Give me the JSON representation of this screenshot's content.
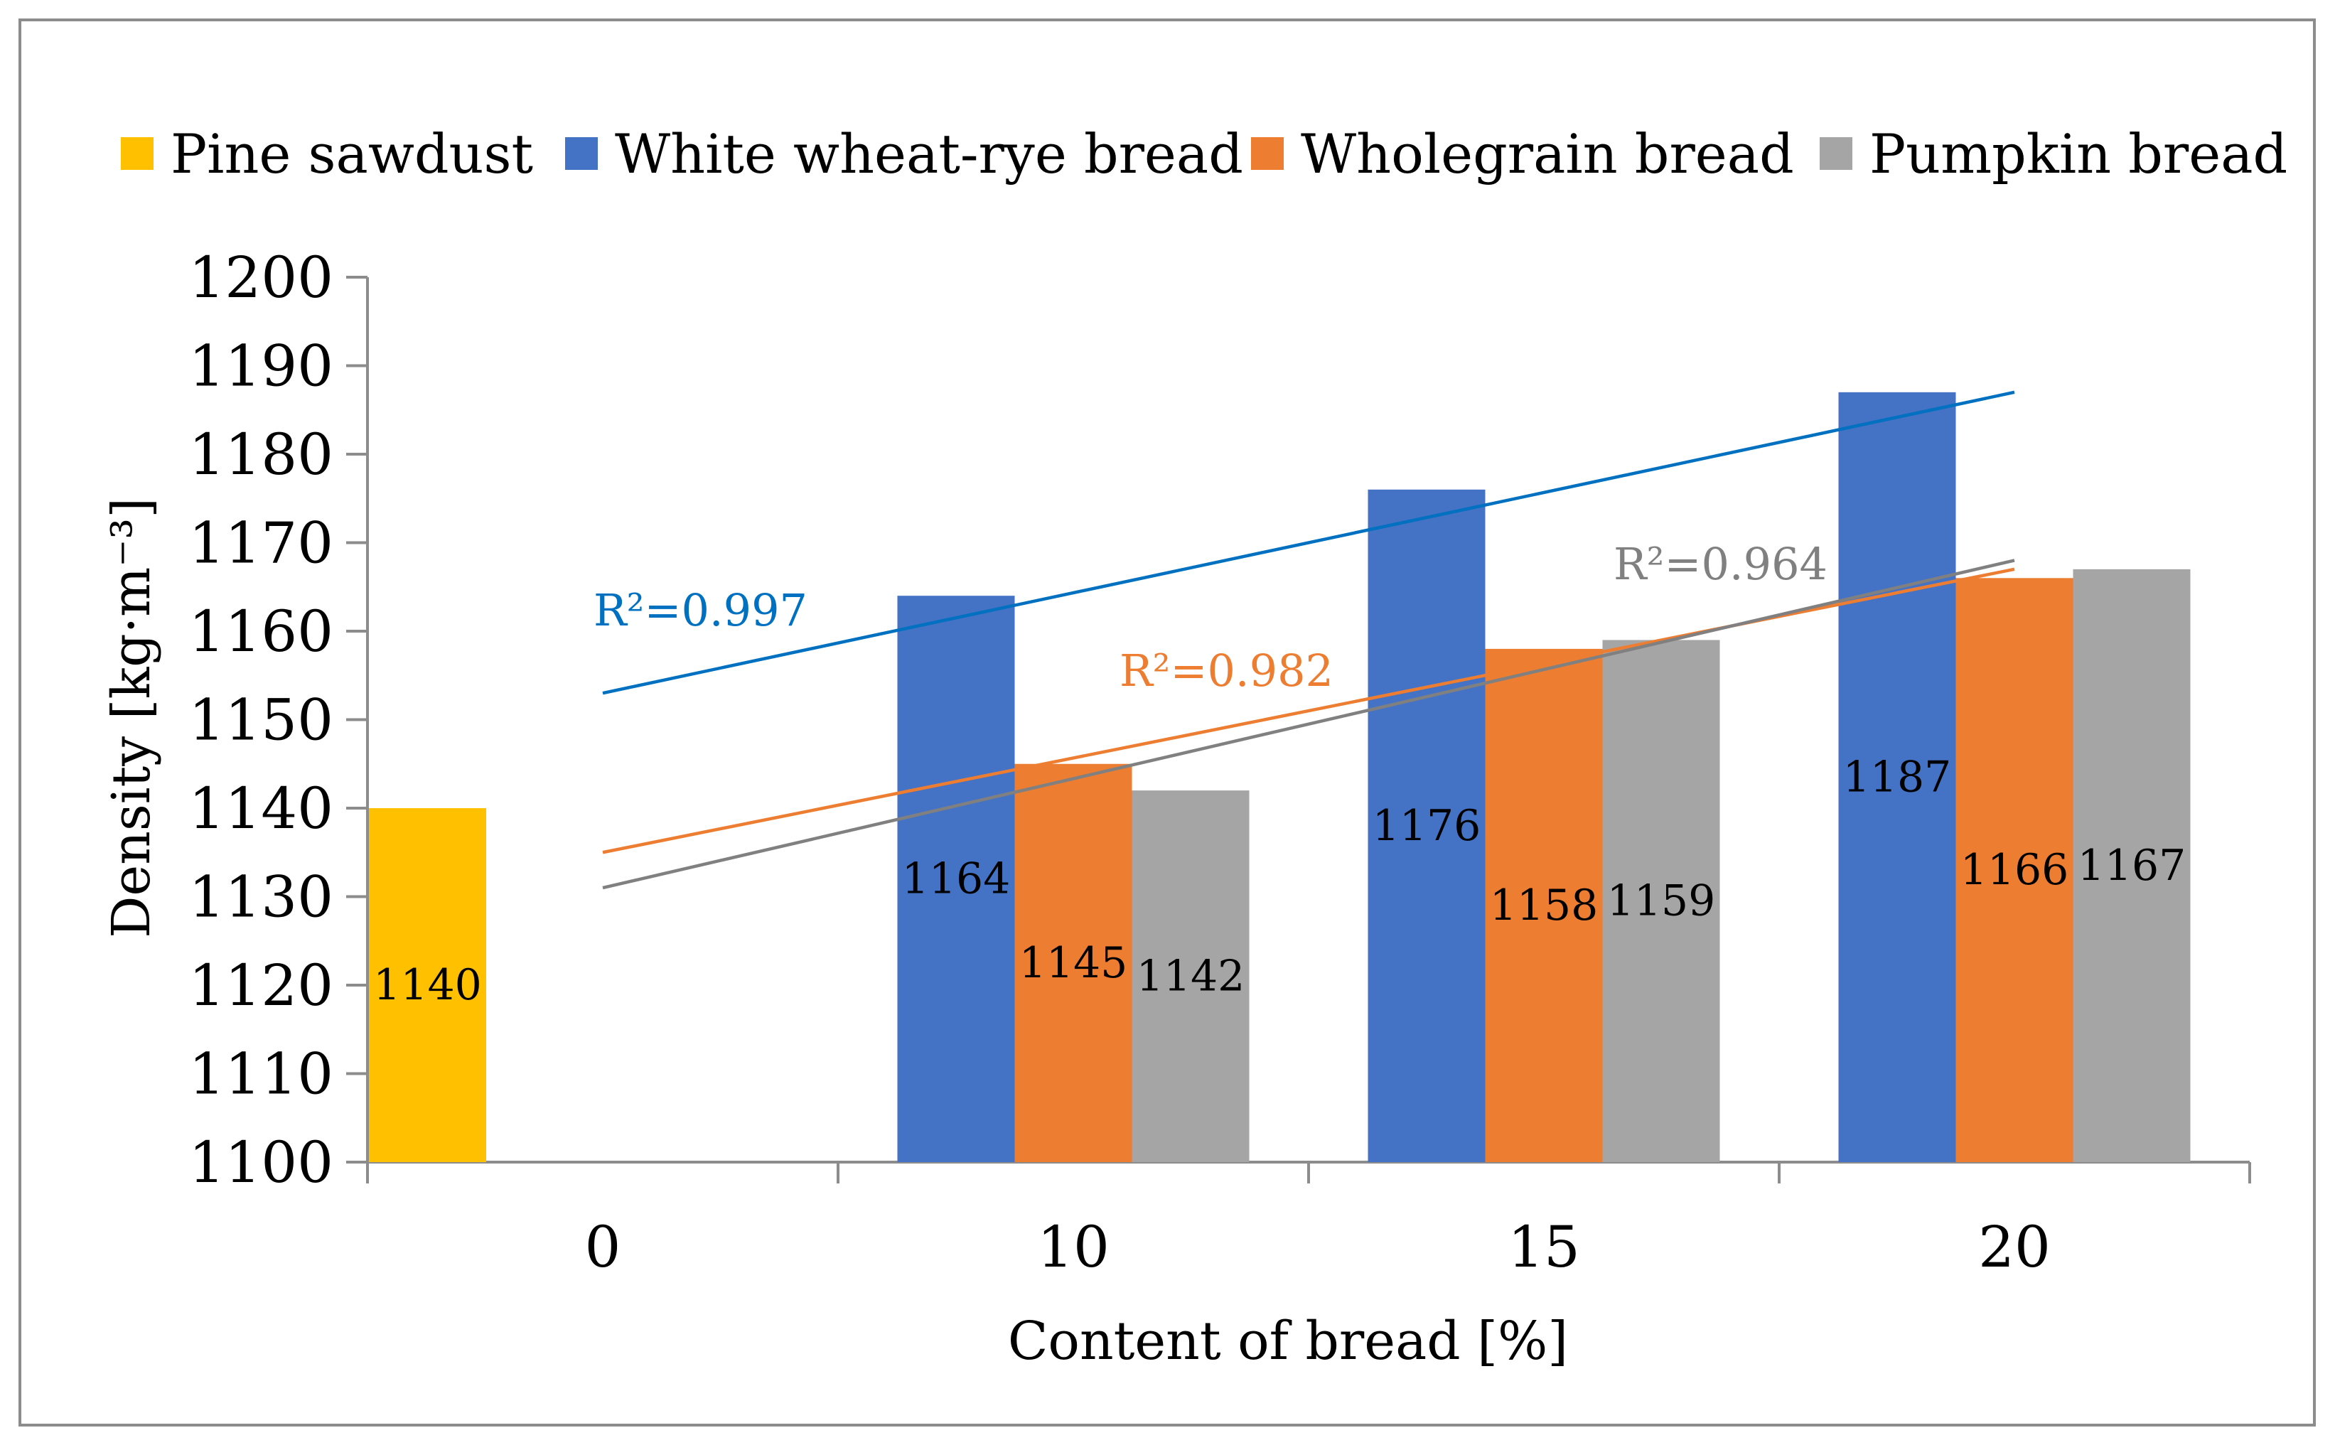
{
  "chart_data": {
    "type": "bar",
    "categories": [
      "0",
      "10",
      "15",
      "20"
    ],
    "series": [
      {
        "name": "Pine sawdust",
        "color": "#FFC000",
        "values": [
          1140,
          null,
          null,
          null
        ],
        "labels": [
          "1140",
          "",
          "",
          ""
        ]
      },
      {
        "name": "White wheat-rye bread",
        "color": "#4472C4",
        "values": [
          null,
          1164,
          1176,
          1187
        ],
        "labels": [
          "",
          "1164",
          "1176",
          "1187"
        ]
      },
      {
        "name": "Wholegrain bread",
        "color": "#ED7D31",
        "values": [
          null,
          1145,
          1158,
          1166
        ],
        "labels": [
          "",
          "1145",
          "1158",
          "1166"
        ]
      },
      {
        "name": "Pumpkin bread",
        "color": "#A5A5A5",
        "values": [
          null,
          1142,
          1159,
          1167
        ],
        "labels": [
          "",
          "1142",
          "1159",
          "1167"
        ]
      }
    ],
    "trendlines": [
      {
        "series": "White wheat-rye bread",
        "color": "#0070C0",
        "from": [
          0,
          1153
        ],
        "to": [
          20,
          1187
        ],
        "label": "R²=0.997"
      },
      {
        "series": "Wholegrain bread",
        "color": "#ED7D31",
        "from": [
          0,
          1135
        ],
        "to": [
          20,
          1167
        ],
        "label": "R²=0.982"
      },
      {
        "series": "Pumpkin bread",
        "color": "#808080",
        "from": [
          0,
          1131
        ],
        "to": [
          20,
          1168
        ],
        "label": "R²=0.964"
      }
    ],
    "title": "",
    "xlabel": "Content of bread  [%]",
    "ylabel": "Density  [kg·m⁻³]",
    "ylim": [
      1100,
      1200
    ],
    "yticks": [
      "1100",
      "1110",
      "1120",
      "1130",
      "1140",
      "1150",
      "1160",
      "1170",
      "1180",
      "1190",
      "1200"
    ],
    "grid": false,
    "legend": "top"
  }
}
